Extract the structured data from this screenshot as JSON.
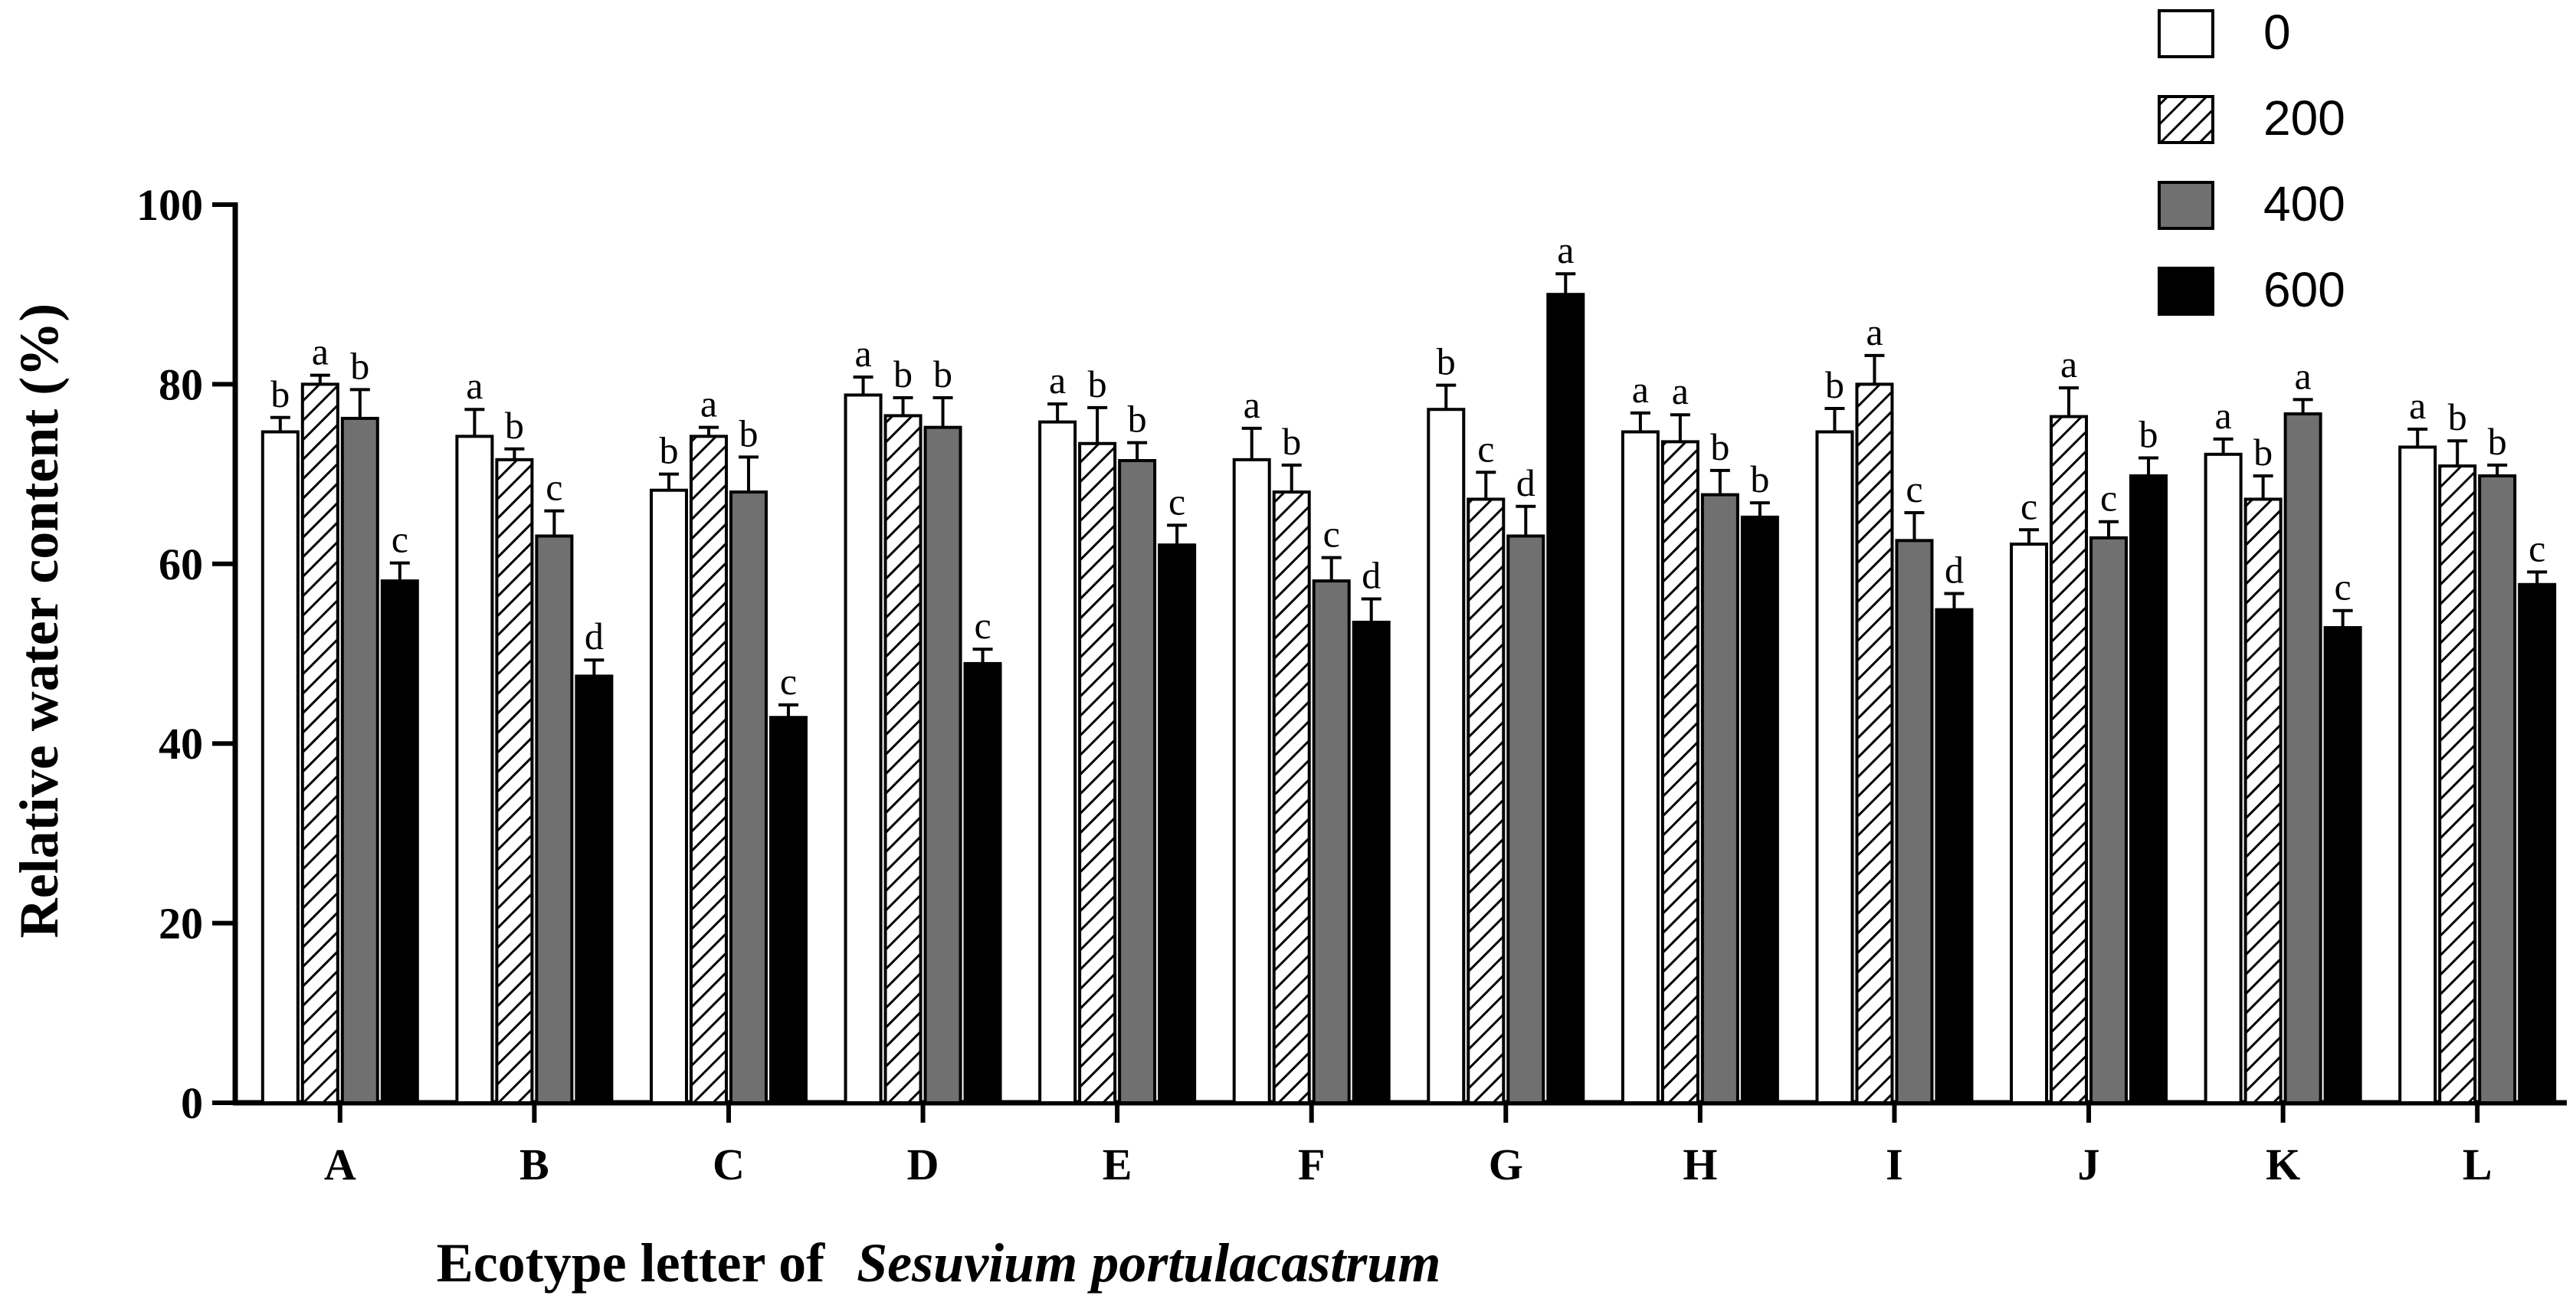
{
  "chart_data": {
    "type": "bar",
    "title": "",
    "ylabel": "Relative water content (%)",
    "xlabel_prefix": "Ecotype letter of",
    "xlabel_species": "Sesuvium portulacastrum",
    "ylim": [
      0,
      100
    ],
    "yticks": [
      0,
      20,
      40,
      60,
      80,
      100
    ],
    "grid": false,
    "legend_position": "top-right",
    "categories": [
      "A",
      "B",
      "C",
      "D",
      "E",
      "F",
      "G",
      "H",
      "I",
      "J",
      "K",
      "L"
    ],
    "series": [
      {
        "name": "0",
        "fill": "white",
        "values": [
          74.7,
          74.2,
          68.2,
          78.8,
          75.8,
          71.6,
          77.2,
          74.7,
          74.7,
          62.2,
          72.2,
          73.0
        ],
        "errors": [
          1.6,
          3.0,
          1.8,
          2.0,
          2.0,
          3.5,
          2.7,
          2.1,
          2.6,
          1.6,
          1.7,
          2.0
        ],
        "labels": [
          "b",
          "a",
          "b",
          "a",
          "a",
          "a",
          "b",
          "a",
          "b",
          "c",
          "a",
          "a"
        ]
      },
      {
        "name": "200",
        "fill": "hatched",
        "values": [
          80.0,
          71.6,
          74.2,
          76.5,
          73.4,
          68.0,
          67.2,
          73.6,
          80.0,
          76.4,
          67.2,
          70.9
        ],
        "errors": [
          1.0,
          1.2,
          1.0,
          2.0,
          4.0,
          3.0,
          3.0,
          3.0,
          3.2,
          3.2,
          2.6,
          2.8
        ],
        "labels": [
          "a",
          "b",
          "a",
          "b",
          "b",
          "b",
          "c",
          "a",
          "a",
          "a",
          "b",
          "b"
        ]
      },
      {
        "name": "400",
        "fill": "#707070",
        "values": [
          76.2,
          63.1,
          68.0,
          75.2,
          71.5,
          58.1,
          63.1,
          67.7,
          62.6,
          62.9,
          76.7,
          69.8
        ],
        "errors": [
          3.2,
          2.8,
          3.9,
          3.3,
          2.0,
          2.6,
          3.3,
          2.7,
          3.1,
          1.8,
          1.6,
          1.2
        ],
        "labels": [
          "b",
          "c",
          "b",
          "b",
          "b",
          "c",
          "d",
          "b",
          "c",
          "c",
          "a",
          "b"
        ]
      },
      {
        "name": "600",
        "fill": "black",
        "values": [
          58.1,
          47.5,
          42.9,
          48.9,
          62.1,
          53.5,
          90.0,
          65.2,
          54.9,
          69.8,
          52.9,
          57.7
        ],
        "errors": [
          2.0,
          1.8,
          1.4,
          1.6,
          2.2,
          2.6,
          2.3,
          1.6,
          1.8,
          2.0,
          1.9,
          1.4
        ],
        "labels": [
          "c",
          "d",
          "c",
          "c",
          "c",
          "d",
          "a",
          "b",
          "d",
          "b",
          "c",
          "c"
        ]
      }
    ]
  }
}
